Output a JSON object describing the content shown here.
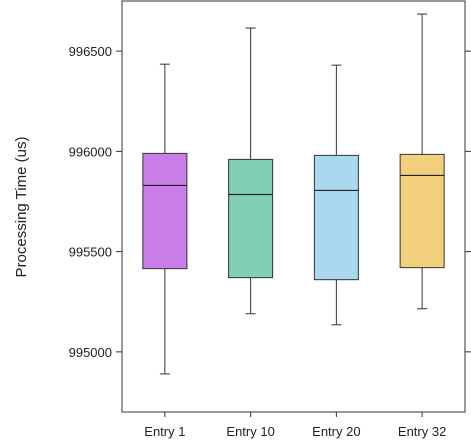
{
  "chart_data": {
    "type": "boxplot",
    "title": "",
    "xlabel": "",
    "ylabel": "Processing Time (us)",
    "ylim": [
      994700,
      996750
    ],
    "yticks": [
      995000,
      995500,
      996000,
      996500
    ],
    "ytick_labels": [
      "995000",
      "995500",
      "996000",
      "996500"
    ],
    "grid": false,
    "categories": [
      "Entry 1",
      "Entry 10",
      "Entry 20",
      "Entry 32"
    ],
    "boxes": [
      {
        "category": "Entry 1",
        "whisker_low": 994890,
        "q1": 995415,
        "median": 995830,
        "q3": 995990,
        "whisker_high": 996435,
        "color": "#c97de8"
      },
      {
        "category": "Entry 10",
        "whisker_low": 995190,
        "q1": 995370,
        "median": 995785,
        "q3": 995960,
        "whisker_high": 996615,
        "color": "#80cfb6"
      },
      {
        "category": "Entry 20",
        "whisker_low": 995135,
        "q1": 995360,
        "median": 995805,
        "q3": 995980,
        "whisker_high": 996430,
        "color": "#a9d8f0"
      },
      {
        "category": "Entry 32",
        "whisker_low": 995215,
        "q1": 995420,
        "median": 995880,
        "q3": 995985,
        "whisker_high": 996685,
        "color": "#f2cf7d"
      }
    ]
  }
}
